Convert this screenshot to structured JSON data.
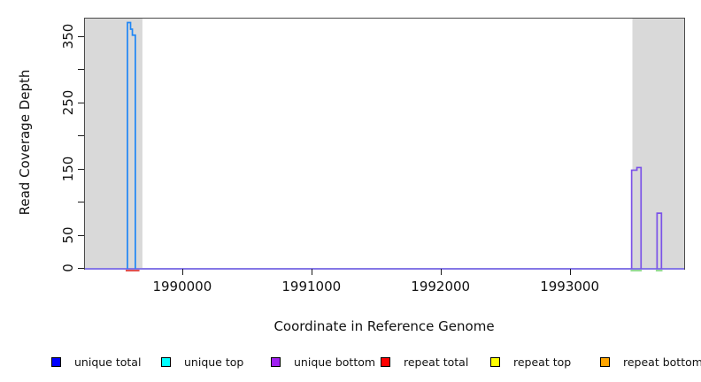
{
  "chart_data": {
    "type": "line",
    "title": "",
    "xlabel": "Coordinate in Reference Genome",
    "ylabel": "Read Coverage Depth",
    "xlim": [
      1989240,
      1993880
    ],
    "ylim": [
      0,
      378
    ],
    "grid": false,
    "legend_position": "bottom-horizontal",
    "x_ticks": [
      {
        "value": 1990000,
        "label": "1990000"
      },
      {
        "value": 1991000,
        "label": "1991000"
      },
      {
        "value": 1992000,
        "label": "1992000"
      },
      {
        "value": 1993000,
        "label": "1993000"
      }
    ],
    "y_ticks": [
      {
        "value": 0,
        "label": "0"
      },
      {
        "value": 50,
        "label": "50"
      },
      {
        "value": 100,
        "label": ""
      },
      {
        "value": 150,
        "label": "150"
      },
      {
        "value": 200,
        "label": ""
      },
      {
        "value": 250,
        "label": "250"
      },
      {
        "value": 300,
        "label": ""
      },
      {
        "value": 350,
        "label": "350"
      }
    ],
    "shaded_regions": [
      {
        "name": "left-gray-band",
        "from": 1989240,
        "to": 1989685,
        "color": "#d9d9d9"
      },
      {
        "name": "right-gray-band",
        "from": 1993479,
        "to": 1993880,
        "color": "#d9d9d9"
      }
    ],
    "legend": [
      {
        "label": "unique total",
        "color": "#0000ff"
      },
      {
        "label": "unique top",
        "color": "#00ffff"
      },
      {
        "label": "unique bottom",
        "color": "#a020f0"
      },
      {
        "label": "repeat total",
        "color": "#ff0000"
      },
      {
        "label": "repeat top",
        "color": "#ffff00"
      },
      {
        "label": "repeat bottom",
        "color": "#ffa500"
      }
    ],
    "series": [
      {
        "name": "repeat-baseline-segment",
        "color": "#e04f4f",
        "width": 3,
        "dy": 1.5,
        "points": [
          [
            1989555,
            0
          ],
          [
            1989662,
            0
          ]
        ]
      },
      {
        "name": "base-green-segment-1",
        "color": "#94da94",
        "width": 3,
        "dy": 1.5,
        "points": [
          [
            1993465,
            0
          ],
          [
            1993552,
            0
          ]
        ]
      },
      {
        "name": "base-green-segment-2",
        "color": "#94da94",
        "width": 3,
        "dy": 1.5,
        "points": [
          [
            1993660,
            0
          ],
          [
            1993712,
            0
          ]
        ]
      },
      {
        "name": "zero-baseline",
        "color": "#8577e6",
        "width": 2,
        "dy": 0,
        "points": [
          [
            1989240,
            0
          ],
          [
            1993880,
            0
          ]
        ]
      },
      {
        "name": "unique-top-spike",
        "color": "#1f86f5",
        "width": 1.7,
        "dy": 0,
        "points": [
          [
            1989569,
            0
          ],
          [
            1989569,
            372
          ],
          [
            1989593,
            372
          ],
          [
            1989593,
            362
          ],
          [
            1989607,
            362
          ],
          [
            1989607,
            353
          ],
          [
            1989630,
            353
          ],
          [
            1989630,
            0
          ]
        ]
      },
      {
        "name": "unique-bottom-spike-1",
        "color": "#7b52e8",
        "width": 1.7,
        "dy": 0,
        "points": [
          [
            1993473,
            0
          ],
          [
            1993473,
            149
          ],
          [
            1993514,
            149
          ],
          [
            1993514,
            153
          ],
          [
            1993546,
            153
          ],
          [
            1993546,
            0
          ]
        ]
      },
      {
        "name": "unique-bottom-spike-2",
        "color": "#7b52e8",
        "width": 1.7,
        "dy": 0,
        "points": [
          [
            1993670,
            0
          ],
          [
            1993670,
            84
          ],
          [
            1993704,
            84
          ],
          [
            1993704,
            0
          ]
        ]
      }
    ]
  }
}
